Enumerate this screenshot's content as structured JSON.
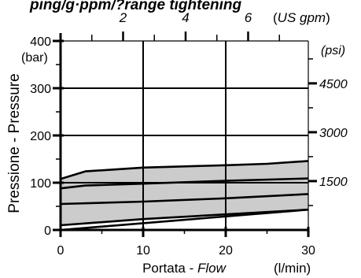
{
  "chart_data": {
    "type": "area",
    "title": "ping/g·ppm/?range tightening",
    "x_axis": {
      "label_it": "Portata - ",
      "label_en": "Flow",
      "unit": "(l/min)",
      "range": [
        0,
        30
      ],
      "ticks": [
        0,
        10,
        20,
        30
      ]
    },
    "x2_axis": {
      "unit": "(US gpm)",
      "unit_prefix": "(",
      "unit_name": "US gpm",
      "unit_suffix": ")",
      "range": [
        0,
        7.925
      ],
      "ticks": [
        2,
        4,
        6
      ]
    },
    "y_axis": {
      "label": "Pressione - Pressure",
      "unit": "(bar)",
      "range": [
        0,
        400
      ],
      "ticks": [
        0,
        100,
        200,
        300,
        400
      ]
    },
    "y2_axis": {
      "unit": "(psi)",
      "ticks": [
        1500,
        3000,
        4500
      ]
    },
    "grid": true,
    "band": {
      "upper": [
        [
          0,
          108
        ],
        [
          3,
          124
        ],
        [
          10,
          132
        ],
        [
          20,
          137
        ],
        [
          25,
          140
        ],
        [
          30,
          146
        ]
      ],
      "lower": [
        [
          0,
          0
        ],
        [
          0,
          10
        ],
        [
          10,
          23
        ],
        [
          20,
          33
        ],
        [
          30,
          43
        ]
      ]
    },
    "series": [
      {
        "values": [
          [
            0,
            108
          ],
          [
            3,
            124
          ],
          [
            10,
            132
          ],
          [
            20,
            137
          ],
          [
            25,
            140
          ],
          [
            30,
            146
          ]
        ]
      },
      {
        "values": [
          [
            0,
            88
          ],
          [
            3,
            94
          ],
          [
            10,
            98
          ],
          [
            20,
            104
          ],
          [
            30,
            109
          ]
        ]
      },
      {
        "values": [
          [
            0,
            55
          ],
          [
            10,
            60
          ],
          [
            20,
            67
          ],
          [
            30,
            76
          ]
        ]
      },
      {
        "values": [
          [
            0,
            10
          ],
          [
            10,
            23
          ],
          [
            20,
            33
          ],
          [
            30,
            43
          ]
        ]
      }
    ],
    "colors": {
      "fill": "#cccccc",
      "line": "#000000",
      "grid": "#000000"
    }
  }
}
